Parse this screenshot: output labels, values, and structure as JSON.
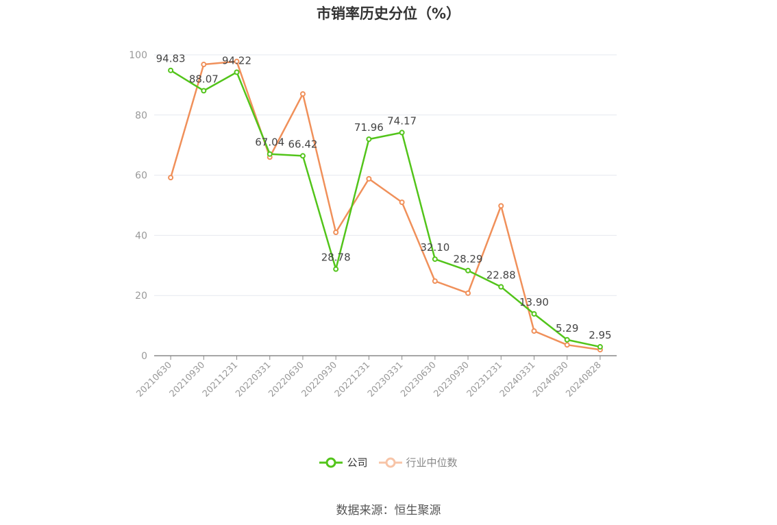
{
  "chart_data": {
    "type": "line",
    "title": "市销率历史分位（%）",
    "categories": [
      "20210630",
      "20210930",
      "20211231",
      "20220331",
      "20220630",
      "20220930",
      "20221231",
      "20230331",
      "20230630",
      "20230930",
      "20231231",
      "20240331",
      "20240630",
      "20240828"
    ],
    "series": [
      {
        "name": "公司",
        "color": "#52c41a",
        "values": [
          94.83,
          88.07,
          94.22,
          67.04,
          66.42,
          28.78,
          71.96,
          74.17,
          32.1,
          28.29,
          22.88,
          13.9,
          5.29,
          2.95
        ],
        "labels": [
          "94.83",
          "88.07",
          "94.22",
          "67.04",
          "66.42",
          "28.78",
          "71.96",
          "74.17",
          "32.10",
          "28.29",
          "22.88",
          "13.90",
          "5.29",
          "2.95"
        ]
      },
      {
        "name": "行业中位数",
        "color": "#f0905a",
        "values": [
          59.2,
          96.8,
          97.8,
          66.0,
          87.0,
          41.0,
          58.8,
          51.0,
          24.8,
          20.8,
          49.8,
          8.2,
          3.6,
          2.0
        ]
      }
    ],
    "ylim": [
      0,
      100
    ],
    "yticks": [
      0,
      20,
      40,
      60,
      80,
      100
    ],
    "grid": true,
    "legend_position": "bottom"
  },
  "source": "数据来源：恒生聚源"
}
